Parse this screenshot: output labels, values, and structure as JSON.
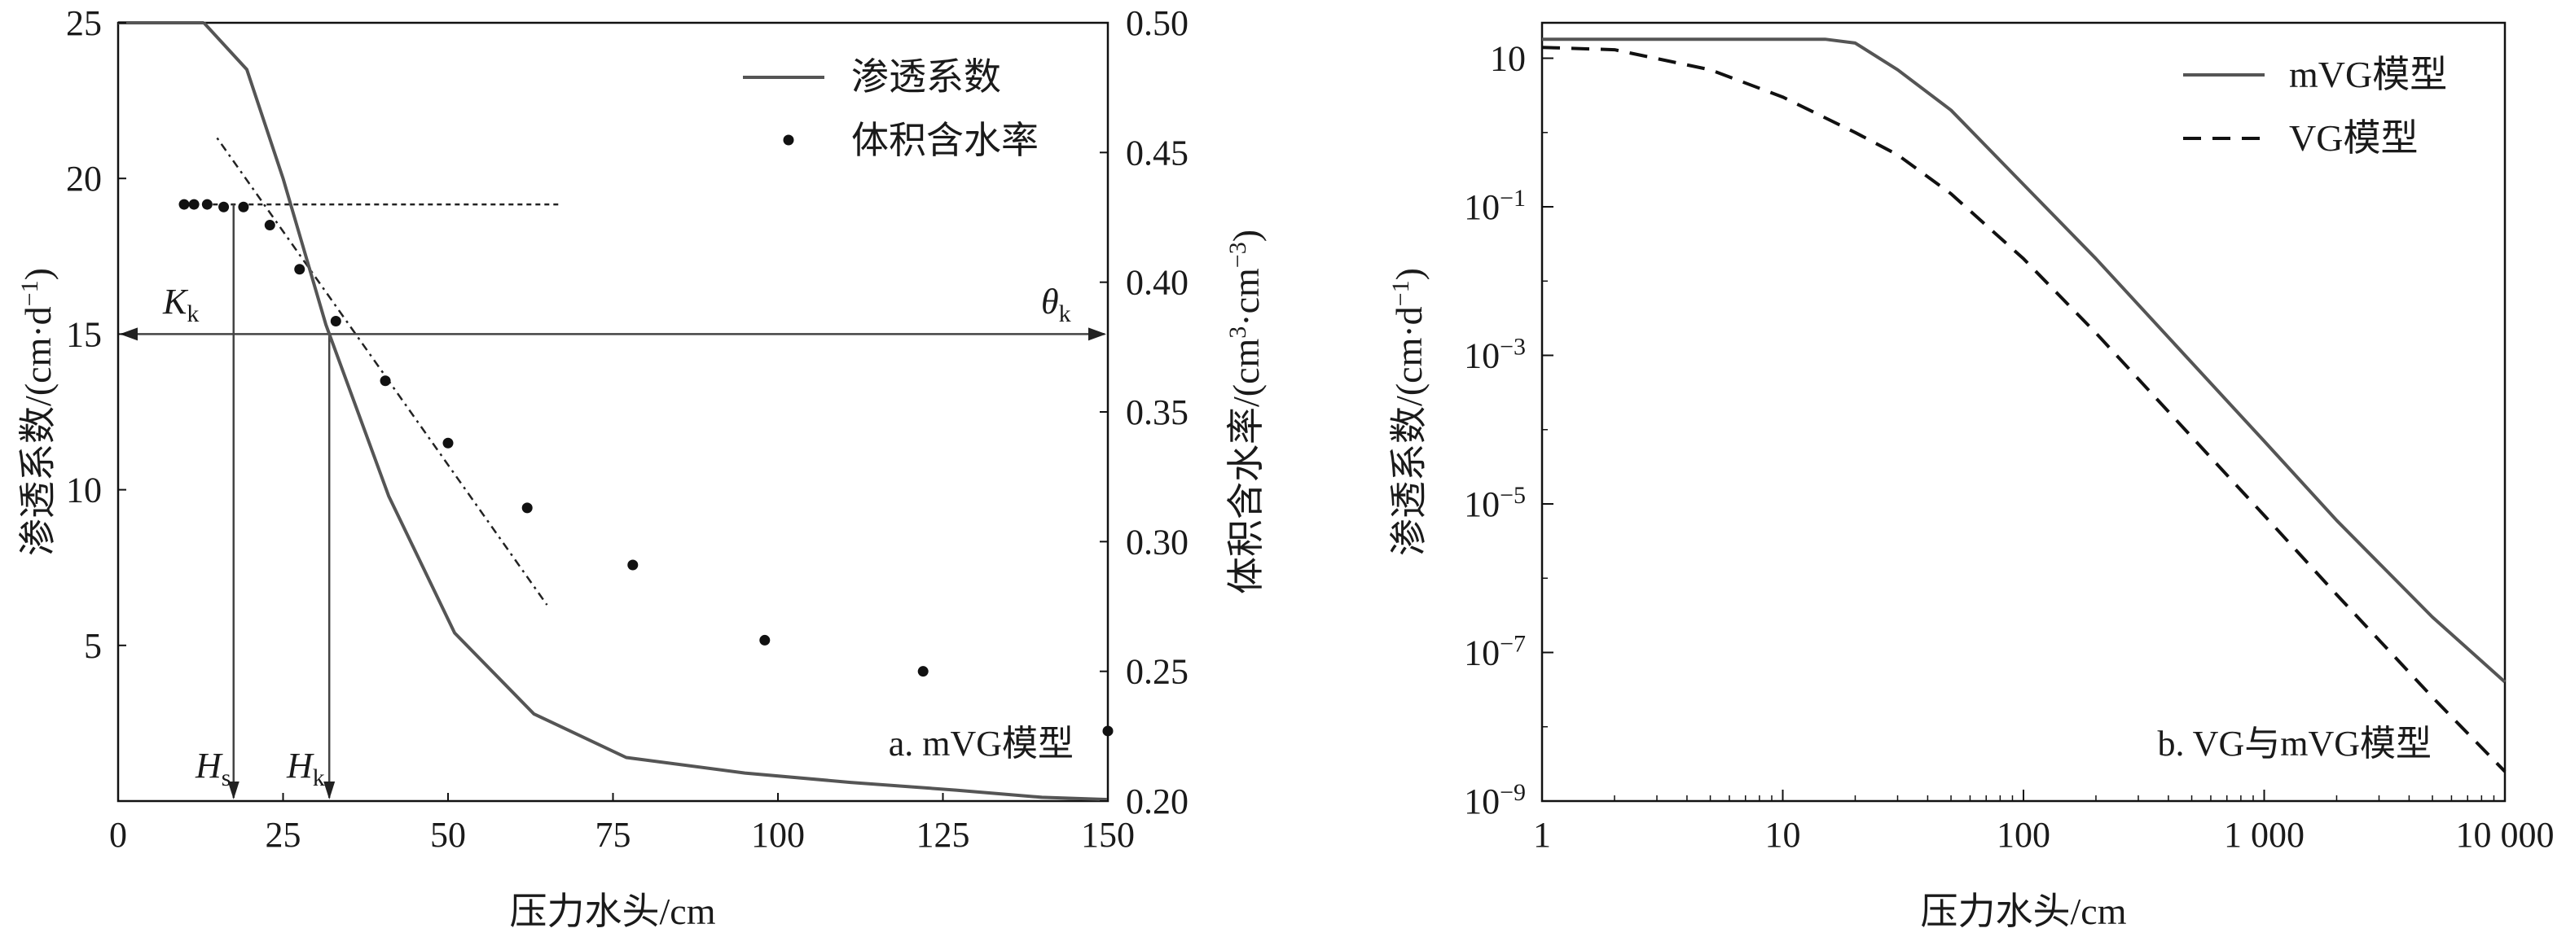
{
  "chart_data": [
    {
      "type": "line",
      "panel_label": "a. mVG模型",
      "xlabel": "压力水头/cm",
      "ylabel": "渗透系数/(cm·d",
      "ylabel_sup": "−1",
      "ylabel_close": ")",
      "y2label": "体积含水率/(cm",
      "y2label_sup1": "3",
      "y2label_mid": "·cm",
      "y2label_sup2": "−3",
      "y2label_close": ")",
      "xlim": [
        0,
        150
      ],
      "ylim": [
        0,
        25
      ],
      "y2lim": [
        0.2,
        0.5
      ],
      "x_ticks": [
        "0",
        "25",
        "50",
        "75",
        "100",
        "125",
        "150"
      ],
      "y_ticks": [
        "5",
        "10",
        "15",
        "20",
        "25"
      ],
      "y2_ticks": [
        "0.20",
        "0.25",
        "0.30",
        "0.35",
        "0.40",
        "0.45",
        "0.50"
      ],
      "legend": [
        "渗透系数",
        "体积含水率"
      ],
      "legend_position": "top-right",
      "series": [
        {
          "name": "渗透系数",
          "axis": "left",
          "style": "solid",
          "color": "#555555",
          "x": [
            13,
            19.5,
            25,
            31.5,
            41,
            51,
            63,
            77,
            95,
            111,
            127,
            140,
            150
          ],
          "y": [
            25,
            23.5,
            20,
            15.3,
            9.8,
            5.4,
            2.8,
            1.4,
            0.9,
            0.6,
            0.35,
            0.12,
            0.05
          ]
        },
        {
          "name": "体积含水率",
          "axis": "right",
          "style": "points",
          "color": "#111111",
          "x": [
            10,
            11.5,
            13.5,
            16,
            19,
            23,
            27.5,
            33,
            40.5,
            50,
            62,
            78,
            98,
            122,
            150
          ],
          "y": [
            0.43,
            0.43,
            0.43,
            0.429,
            0.429,
            0.422,
            0.405,
            0.385,
            0.362,
            0.338,
            0.313,
            0.291,
            0.262,
            0.25,
            0.227
          ]
        }
      ],
      "annotations": {
        "kk_label": "K",
        "kk_sub": "k",
        "theta_label": "θ",
        "theta_sub": "k",
        "hs_label": "H",
        "hs_sub": "s",
        "hk_label": "H",
        "hk_sub": "k",
        "kk_value": 15,
        "hs_x": 17.5,
        "hk_x": 32,
        "plateau_theta": 0.43,
        "plateau_x_end": 67,
        "tangent_points": [
          [
            15,
            21.3
          ],
          [
            65,
            6.3
          ]
        ]
      }
    },
    {
      "type": "line",
      "panel_label": "b. VG与mVG模型",
      "xlabel": "压力水头/cm",
      "ylabel": "渗透系数/(cm·d",
      "ylabel_sup": "−1",
      "ylabel_close": ")",
      "xscale": "log",
      "yscale": "log",
      "xlim": [
        1,
        10000
      ],
      "ylim": [
        1e-09,
        30
      ],
      "x_ticks": [
        "1",
        "10",
        "100",
        "1 000",
        "10 000"
      ],
      "y_ticks": [
        {
          "base": "10",
          "exp": "−9"
        },
        {
          "base": "10",
          "exp": "−7"
        },
        {
          "base": "10",
          "exp": "−5"
        },
        {
          "base": "10",
          "exp": "−3"
        },
        {
          "base": "10",
          "exp": "−1"
        },
        {
          "base": "10",
          "exp": ""
        }
      ],
      "legend": [
        "mVG模型",
        "VG模型"
      ],
      "legend_position": "top-right",
      "series": [
        {
          "name": "mVG模型",
          "style": "solid",
          "color": "#555555",
          "x": [
            1,
            15,
            20,
            30,
            50,
            100,
            200,
            500,
            1000,
            2000,
            5000,
            10000
          ],
          "y": [
            18,
            18,
            16,
            7,
            2,
            0.2,
            0.02,
            0.0008,
            7e-05,
            6e-06,
            3e-07,
            4e-08
          ]
        },
        {
          "name": "VG模型",
          "style": "dashed",
          "color": "#111111",
          "x": [
            1,
            2,
            5,
            10,
            20,
            30,
            50,
            100,
            200,
            500,
            1000,
            2000,
            5000,
            10000
          ],
          "y": [
            14,
            13,
            7,
            3,
            1,
            0.5,
            0.15,
            0.02,
            0.002,
            8e-05,
            7e-06,
            6e-07,
            2.5e-08,
            2.5e-09
          ]
        }
      ]
    }
  ]
}
